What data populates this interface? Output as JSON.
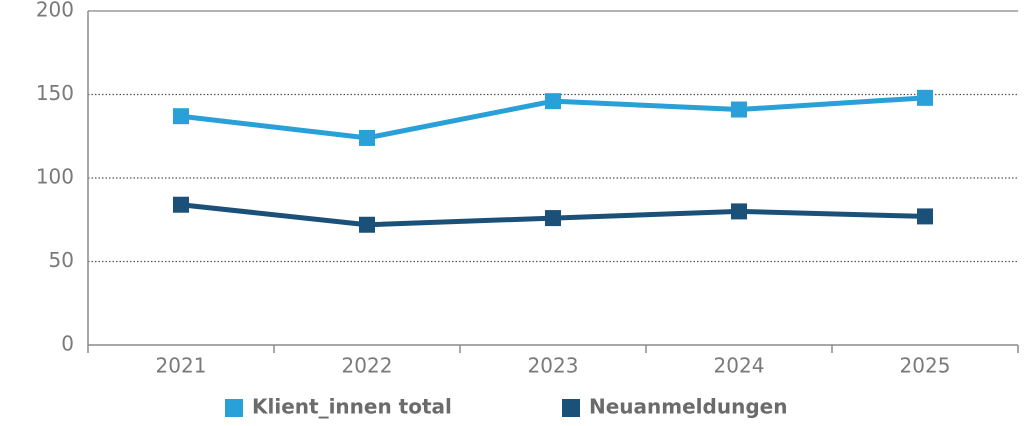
{
  "chart_data": {
    "type": "line",
    "categories": [
      "2021",
      "2022",
      "2023",
      "2024",
      "2025"
    ],
    "series": [
      {
        "name": "Klient_innen total",
        "color": "#29a0d8",
        "values": [
          137,
          124,
          146,
          141,
          148
        ]
      },
      {
        "name": "Neuanmeldungen",
        "color": "#1b5079",
        "values": [
          84,
          72,
          76,
          80,
          77
        ]
      }
    ],
    "ylim": [
      0,
      200
    ],
    "yticks": [
      0,
      50,
      100,
      150,
      200
    ],
    "grid": true,
    "legend": "bottom"
  }
}
